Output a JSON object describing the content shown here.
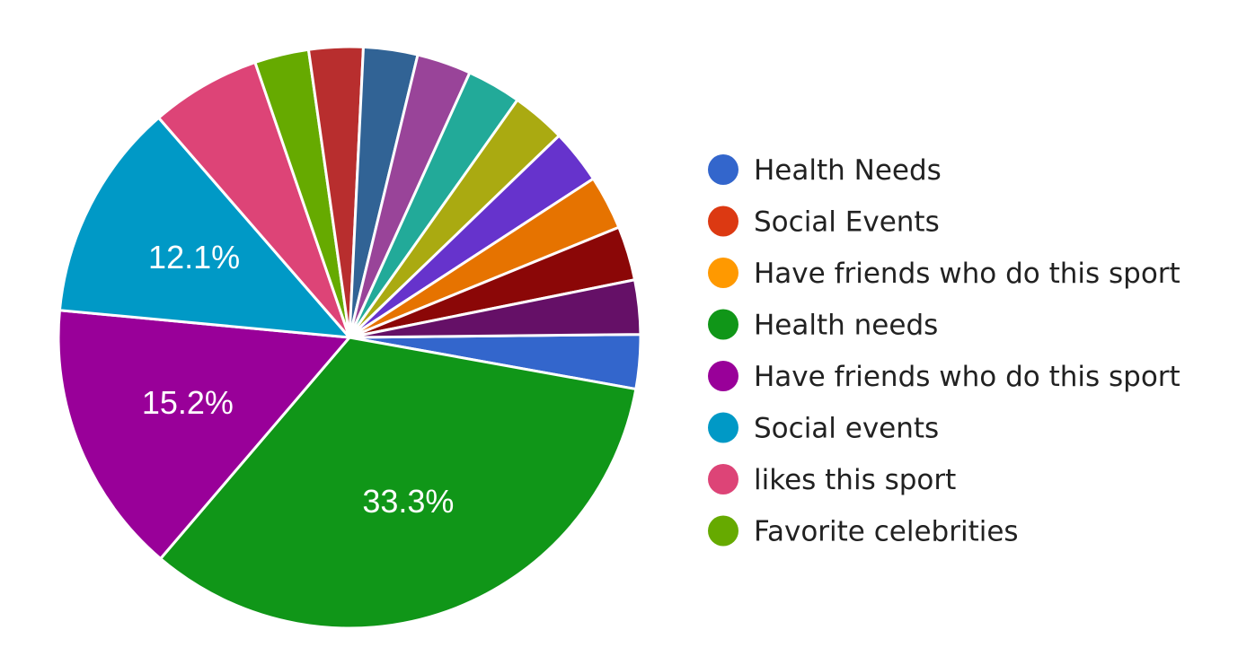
{
  "chart_data": {
    "type": "pie",
    "title": "",
    "slices": [
      {
        "label": "",
        "value": 3.0,
        "color": "#3366cc",
        "show_label": false
      },
      {
        "label": "Health needs",
        "value": 33.3,
        "color": "#109618",
        "show_label": true,
        "display": "33.3%"
      },
      {
        "label": "Have friends who do this sport",
        "value": 15.2,
        "color": "#990099",
        "show_label": true,
        "display": "15.2%"
      },
      {
        "label": "Social events",
        "value": 12.1,
        "color": "#0099c6",
        "show_label": true,
        "display": "12.1%"
      },
      {
        "label": "likes this sport",
        "value": 6.1,
        "color": "#dd4477",
        "show_label": false
      },
      {
        "label": "Favorite celebrities",
        "value": 3.0,
        "color": "#66aa00",
        "show_label": false
      },
      {
        "label": "",
        "value": 3.0,
        "color": "#b82e2e",
        "show_label": false
      },
      {
        "label": "",
        "value": 3.0,
        "color": "#316395",
        "show_label": false
      },
      {
        "label": "",
        "value": 3.0,
        "color": "#994499",
        "show_label": false
      },
      {
        "label": "",
        "value": 3.0,
        "color": "#22aa99",
        "show_label": false
      },
      {
        "label": "",
        "value": 3.0,
        "color": "#aaaa11",
        "show_label": false
      },
      {
        "label": "",
        "value": 3.0,
        "color": "#6633cc",
        "show_label": false
      },
      {
        "label": "",
        "value": 3.0,
        "color": "#e67300",
        "show_label": false
      },
      {
        "label": "",
        "value": 3.0,
        "color": "#8b0707",
        "show_label": false
      },
      {
        "label": "",
        "value": 3.0,
        "color": "#651067",
        "show_label": false
      }
    ],
    "legend": {
      "placement": "right",
      "entries": [
        {
          "label": "Health Needs",
          "color": "#3366cc"
        },
        {
          "label": "Social Events",
          "color": "#dc3912"
        },
        {
          "label": "Have friends who do this sport",
          "color": "#ff9900"
        },
        {
          "label": "Health needs",
          "color": "#109618"
        },
        {
          "label": "Have friends who do this sport",
          "color": "#990099"
        },
        {
          "label": "Social events",
          "color": "#0099c6"
        },
        {
          "label": "likes this sport",
          "color": "#dd4477"
        },
        {
          "label": "Favorite celebrities",
          "color": "#66aa00"
        }
      ]
    }
  }
}
